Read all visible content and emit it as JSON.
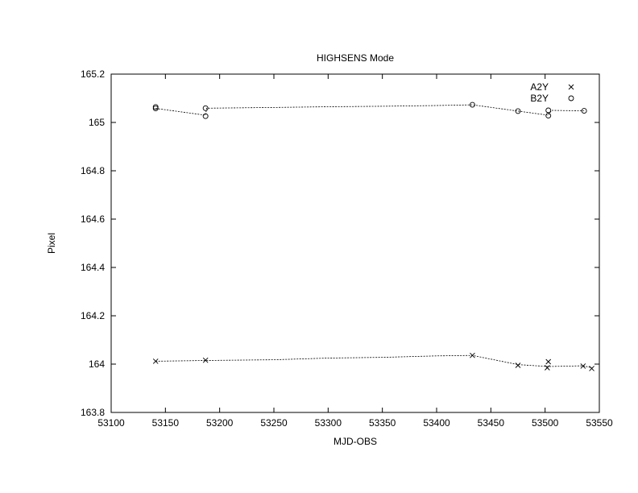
{
  "chart_data": {
    "type": "scatter",
    "title": "HIGHSENS Mode",
    "xlabel": "MJD-OBS",
    "ylabel": "Pixel",
    "xlim": [
      53100,
      53550
    ],
    "ylim": [
      163.8,
      165.2
    ],
    "xticks": [
      "53100",
      "53150",
      "53200",
      "53250",
      "53300",
      "53350",
      "53400",
      "53450",
      "53500",
      "53550"
    ],
    "yticks": [
      "163.8",
      "164",
      "164.2",
      "164.4",
      "164.6",
      "164.8",
      "165",
      "165.2"
    ],
    "grid": false,
    "legend_position": "top-right",
    "series": [
      {
        "name": "A2Y",
        "marker": "cross",
        "points": [
          [
            53141,
            164.012
          ],
          [
            53187,
            164.016
          ],
          [
            53433,
            164.036
          ],
          [
            53475,
            163.995
          ],
          [
            53502,
            163.985
          ],
          [
            53503,
            164.01
          ],
          [
            53535,
            163.992
          ],
          [
            53543,
            163.982
          ]
        ],
        "line": [
          [
            53141,
            164.012
          ],
          [
            53187,
            164.015
          ],
          [
            53250,
            164.018
          ],
          [
            53300,
            164.025
          ],
          [
            53350,
            164.028
          ],
          [
            53400,
            164.034
          ],
          [
            53433,
            164.036
          ],
          [
            53475,
            163.998
          ],
          [
            53503,
            163.99
          ],
          [
            53535,
            163.993
          ],
          [
            53543,
            163.985
          ]
        ]
      },
      {
        "name": "B2Y",
        "marker": "circle",
        "points": [
          [
            53141,
            165.064
          ],
          [
            53141,
            165.058
          ],
          [
            53187,
            165.059
          ],
          [
            53187,
            165.026
          ],
          [
            53433,
            165.073
          ],
          [
            53475,
            165.047
          ],
          [
            53503,
            165.05
          ],
          [
            53503,
            165.028
          ],
          [
            53536,
            165.048
          ]
        ],
        "line": [
          [
            53141,
            165.058
          ],
          [
            53187,
            165.03
          ],
          [
            53188,
            165.059
          ],
          [
            53250,
            165.062
          ],
          [
            53300,
            165.065
          ],
          [
            53350,
            165.067
          ],
          [
            53400,
            165.07
          ],
          [
            53433,
            165.073
          ],
          [
            53475,
            165.047
          ],
          [
            53503,
            165.03
          ],
          [
            53506,
            165.05
          ],
          [
            53536,
            165.048
          ]
        ]
      }
    ]
  }
}
